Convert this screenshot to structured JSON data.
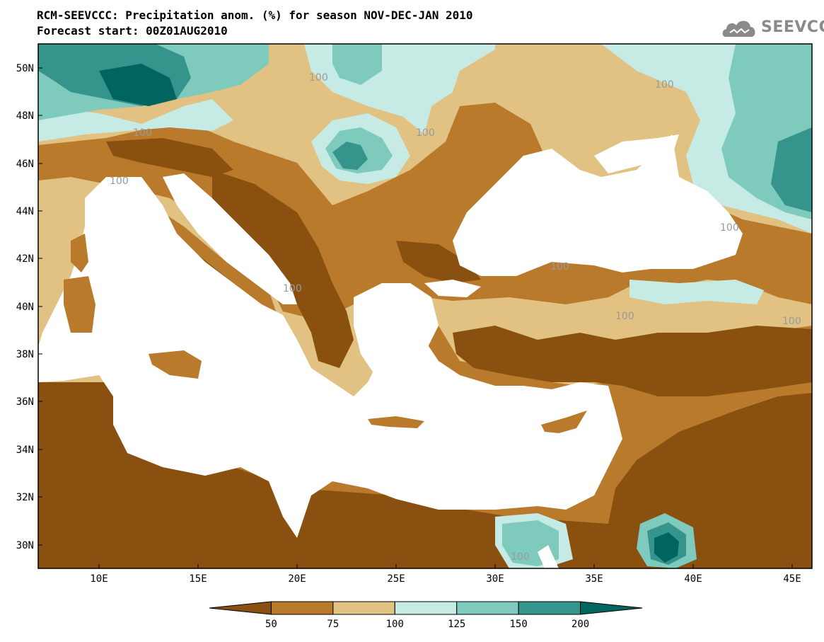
{
  "title_line1": "RCM-SEEVCCC: Precipitation anom. (%) for season NOV-DEC-JAN 2010",
  "title_line2": "Forecast start: 00Z01AUG2010",
  "logo": {
    "text": "SEEVCCC",
    "icon": "cloud-icon"
  },
  "map": {
    "lat_ticks": [
      "50N",
      "48N",
      "46N",
      "44N",
      "42N",
      "40N",
      "38N",
      "36N",
      "34N",
      "32N",
      "30N"
    ],
    "lon_ticks": [
      "10E",
      "15E",
      "20E",
      "25E",
      "30E",
      "35E",
      "40E",
      "45E"
    ],
    "contour_label": "100"
  },
  "colorbar": {
    "labels": [
      "50",
      "75",
      "100",
      "125",
      "150",
      "200"
    ],
    "colors": [
      "#8a5010",
      "#b97a2c",
      "#e1c283",
      "#c5ebe4",
      "#7ecabd",
      "#35948b",
      "#00655f"
    ]
  },
  "colors": {
    "sea": "#ffffff",
    "border": "#000000",
    "contour": "#a9a9a9"
  }
}
